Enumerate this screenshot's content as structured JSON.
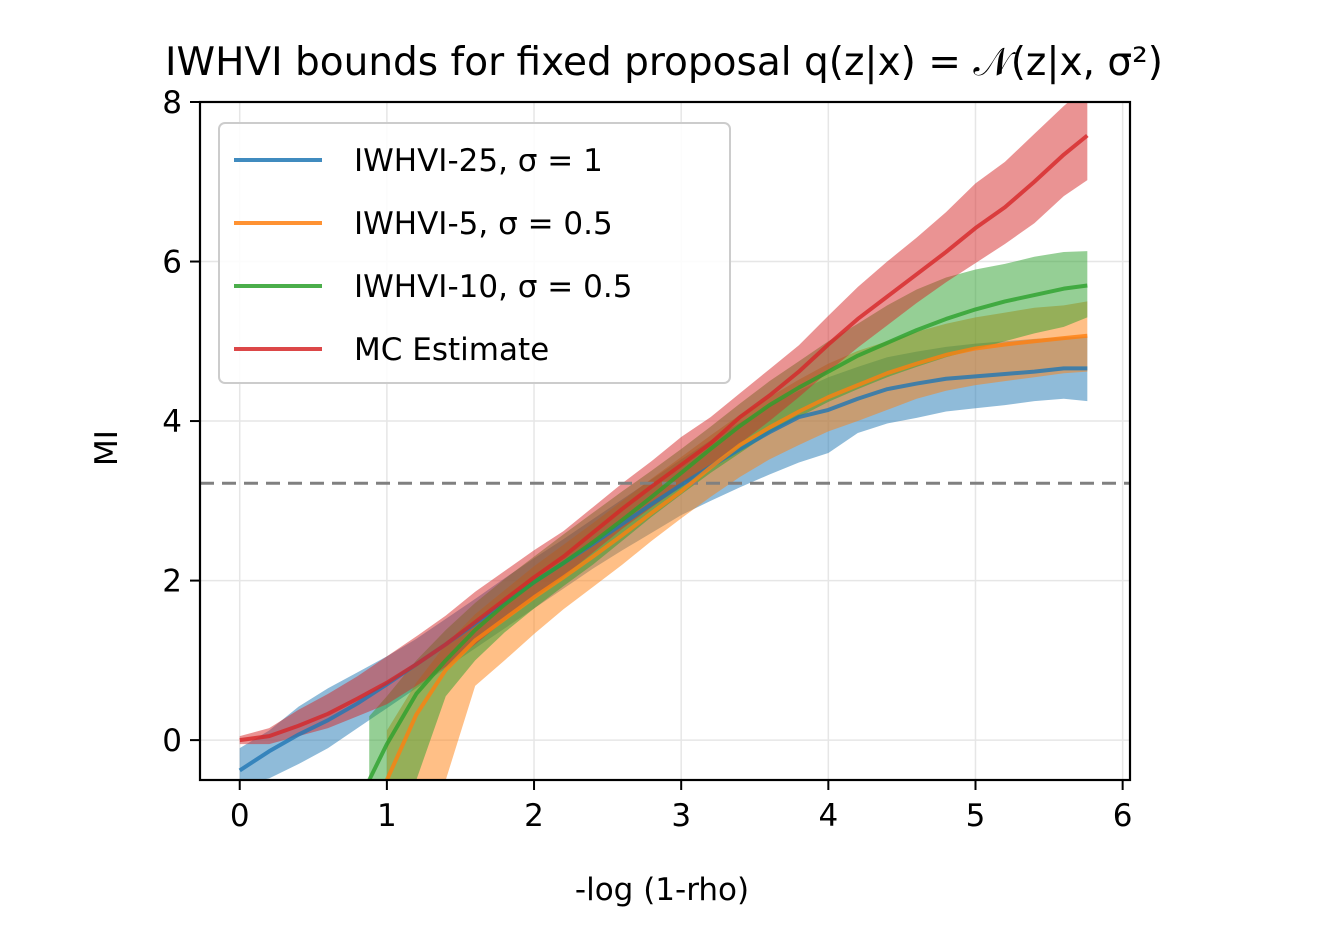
{
  "chart_data": {
    "type": "line",
    "title": "IWHVI bounds for fixed proposal q(z|x) = 𝒩(z|x, σ²)",
    "xlabel": "-log (1-rho)",
    "ylabel": "MI",
    "xlim": [
      -0.27,
      6.05
    ],
    "ylim": [
      -0.5,
      8
    ],
    "xticks": [
      0,
      1,
      2,
      3,
      4,
      5,
      6
    ],
    "yticks": [
      0,
      2,
      4,
      6,
      8
    ],
    "grid": true,
    "legend_position": "upper-left",
    "reference_line": {
      "y": 3.22,
      "style": "dashed",
      "color": "#808080"
    },
    "series": [
      {
        "name": "IWHVI-25, σ = 1",
        "color": "#1f77b4",
        "x": [
          0,
          0.2,
          0.4,
          0.6,
          0.8,
          1.0,
          1.2,
          1.4,
          1.6,
          1.8,
          2.0,
          2.2,
          2.4,
          2.6,
          2.8,
          3.0,
          3.2,
          3.4,
          3.6,
          3.8,
          4.0,
          4.2,
          4.4,
          4.6,
          4.8,
          5.0,
          5.2,
          5.4,
          5.6,
          5.76
        ],
        "values": [
          -0.38,
          -0.14,
          0.07,
          0.25,
          0.46,
          0.7,
          0.95,
          1.2,
          1.46,
          1.72,
          1.98,
          2.22,
          2.46,
          2.71,
          2.96,
          3.2,
          3.43,
          3.65,
          3.86,
          4.05,
          4.14,
          4.28,
          4.4,
          4.47,
          4.53,
          4.56,
          4.59,
          4.62,
          4.66,
          4.66
        ],
        "lower": [
          -0.55,
          -0.48,
          -0.3,
          -0.1,
          0.15,
          0.4,
          0.65,
          0.9,
          1.15,
          1.4,
          1.65,
          1.9,
          2.15,
          2.38,
          2.6,
          2.82,
          3.0,
          3.17,
          3.33,
          3.48,
          3.6,
          3.85,
          3.97,
          4.04,
          4.12,
          4.16,
          4.2,
          4.25,
          4.28,
          4.25
        ],
        "upper": [
          -0.1,
          0.12,
          0.42,
          0.65,
          0.85,
          1.05,
          1.27,
          1.52,
          1.77,
          2.03,
          2.28,
          2.52,
          2.77,
          3.02,
          3.27,
          3.52,
          3.76,
          3.98,
          4.2,
          4.38,
          4.55,
          4.68,
          4.8,
          4.87,
          4.93,
          4.97,
          5.0,
          5.03,
          5.05,
          5.06
        ]
      },
      {
        "name": "IWHVI-5, σ = 0.5",
        "color": "#ff7f0e",
        "x": [
          1.0,
          1.2,
          1.4,
          1.6,
          1.8,
          2.0,
          2.2,
          2.4,
          2.6,
          2.8,
          3.0,
          3.2,
          3.4,
          3.6,
          3.8,
          4.0,
          4.2,
          4.4,
          4.6,
          4.8,
          5.0,
          5.2,
          5.4,
          5.6,
          5.76
        ],
        "values": [
          -0.5,
          0.32,
          0.88,
          1.25,
          1.52,
          1.79,
          2.04,
          2.3,
          2.57,
          2.85,
          3.12,
          3.42,
          3.7,
          3.92,
          4.12,
          4.3,
          4.45,
          4.6,
          4.72,
          4.83,
          4.91,
          4.96,
          5.0,
          5.04,
          5.07
        ],
        "lower": [
          -0.5,
          -0.5,
          -0.5,
          0.68,
          1.0,
          1.33,
          1.64,
          1.92,
          2.2,
          2.5,
          2.78,
          3.05,
          3.3,
          3.52,
          3.7,
          3.87,
          4.0,
          4.14,
          4.28,
          4.38,
          4.45,
          4.5,
          4.55,
          4.6,
          4.62
        ],
        "upper": [
          0.12,
          0.72,
          1.2,
          1.58,
          1.88,
          2.18,
          2.45,
          2.72,
          3.0,
          3.28,
          3.55,
          3.82,
          4.08,
          4.3,
          4.52,
          4.72,
          4.88,
          5.0,
          5.12,
          5.22,
          5.3,
          5.36,
          5.42,
          5.45,
          5.5
        ]
      },
      {
        "name": "IWHVI-10, σ = 0.5",
        "color": "#2ca02c",
        "x": [
          0.88,
          1.0,
          1.2,
          1.4,
          1.6,
          1.8,
          2.0,
          2.2,
          2.4,
          2.6,
          2.8,
          3.0,
          3.2,
          3.4,
          3.6,
          3.8,
          4.0,
          4.2,
          4.4,
          4.6,
          4.8,
          5.0,
          5.2,
          5.4,
          5.6,
          5.76
        ],
        "values": [
          -0.5,
          -0.05,
          0.58,
          1.0,
          1.38,
          1.7,
          1.98,
          2.22,
          2.48,
          2.76,
          3.05,
          3.35,
          3.65,
          3.94,
          4.2,
          4.42,
          4.62,
          4.82,
          4.98,
          5.14,
          5.28,
          5.4,
          5.5,
          5.58,
          5.66,
          5.7
        ],
        "lower": [
          -0.5,
          -0.5,
          -0.5,
          0.55,
          1.0,
          1.35,
          1.65,
          1.93,
          2.2,
          2.5,
          2.8,
          3.08,
          3.35,
          3.6,
          3.85,
          4.05,
          4.24,
          4.4,
          4.55,
          4.68,
          4.8,
          4.9,
          5.0,
          5.1,
          5.18,
          5.3
        ],
        "upper": [
          0.3,
          0.55,
          1.0,
          1.38,
          1.72,
          2.02,
          2.3,
          2.58,
          2.85,
          3.12,
          3.38,
          3.65,
          3.93,
          4.22,
          4.5,
          4.75,
          5.0,
          5.22,
          5.45,
          5.65,
          5.8,
          5.9,
          5.97,
          6.06,
          6.12,
          6.13
        ]
      },
      {
        "name": "MC Estimate",
        "color": "#d62728",
        "x": [
          0,
          0.2,
          0.4,
          0.6,
          0.8,
          1.0,
          1.2,
          1.4,
          1.6,
          1.8,
          2.0,
          2.2,
          2.4,
          2.6,
          2.8,
          3.0,
          3.2,
          3.4,
          3.6,
          3.8,
          4.0,
          4.2,
          4.4,
          4.6,
          4.8,
          5.0,
          5.2,
          5.4,
          5.6,
          5.76
        ],
        "values": [
          0.0,
          0.05,
          0.18,
          0.33,
          0.52,
          0.72,
          0.95,
          1.2,
          1.48,
          1.76,
          2.04,
          2.3,
          2.6,
          2.9,
          3.18,
          3.45,
          3.72,
          4.05,
          4.32,
          4.62,
          4.96,
          5.28,
          5.56,
          5.84,
          6.12,
          6.42,
          6.68,
          7.0,
          7.34,
          7.58
        ],
        "lower": [
          -0.05,
          -0.05,
          0.05,
          0.15,
          0.3,
          0.45,
          0.68,
          0.92,
          1.2,
          1.5,
          1.78,
          2.05,
          2.35,
          2.65,
          2.92,
          3.18,
          3.45,
          3.72,
          4.0,
          4.3,
          4.62,
          4.92,
          5.2,
          5.48,
          5.74,
          5.98,
          6.22,
          6.48,
          6.82,
          7.02
        ],
        "upper": [
          0.05,
          0.15,
          0.38,
          0.58,
          0.8,
          1.05,
          1.3,
          1.56,
          1.86,
          2.12,
          2.38,
          2.62,
          2.92,
          3.22,
          3.5,
          3.8,
          4.05,
          4.35,
          4.65,
          4.95,
          5.32,
          5.68,
          6.0,
          6.3,
          6.62,
          6.98,
          7.25,
          7.6,
          7.95,
          8.2
        ]
      }
    ]
  }
}
